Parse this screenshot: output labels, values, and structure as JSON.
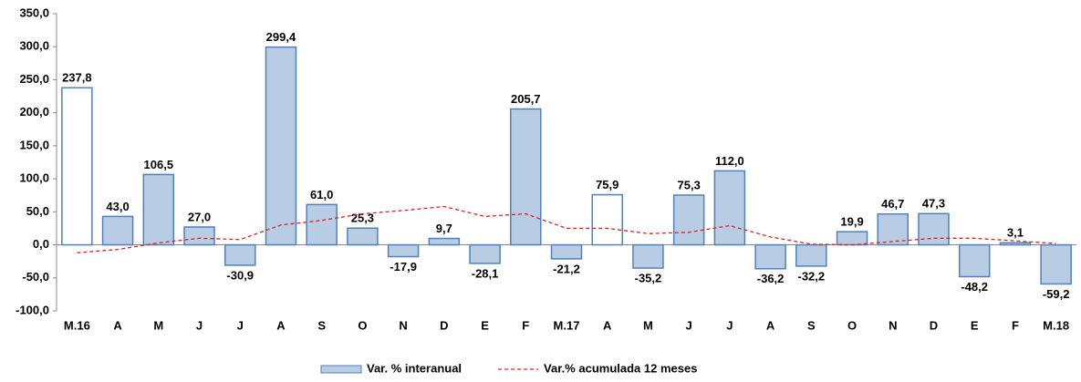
{
  "chart_data": {
    "type": "bar",
    "categories": [
      "M.16",
      "A",
      "M",
      "J",
      "J",
      "A",
      "S",
      "O",
      "N",
      "D",
      "E",
      "F",
      "M.17",
      "A",
      "M",
      "J",
      "J",
      "A",
      "S",
      "O",
      "N",
      "D",
      "E",
      "F",
      "M.18"
    ],
    "series": [
      {
        "name": "Var. % interanual",
        "type": "bar",
        "color": "#b8cce4",
        "border": "#4f81bd",
        "colors": [
          "#ffffff",
          "#b8cce4",
          "#b8cce4",
          "#b8cce4",
          "#b8cce4",
          "#b8cce4",
          "#b8cce4",
          "#b8cce4",
          "#b8cce4",
          "#b8cce4",
          "#b8cce4",
          "#b8cce4",
          "#b8cce4",
          "#ffffff",
          "#b8cce4",
          "#b8cce4",
          "#b8cce4",
          "#b8cce4",
          "#b8cce4",
          "#b8cce4",
          "#b8cce4",
          "#b8cce4",
          "#b8cce4",
          "#b8cce4",
          "#b8cce4"
        ],
        "values": [
          237.8,
          43.0,
          106.5,
          27.0,
          -30.9,
          299.4,
          61.0,
          25.3,
          -17.9,
          9.7,
          -28.1,
          205.7,
          -21.2,
          75.9,
          -35.2,
          75.3,
          112.0,
          -36.2,
          -32.2,
          19.9,
          46.7,
          47.3,
          -48.2,
          3.1,
          -59.2
        ],
        "value_labels": [
          "237,8",
          "43,0",
          "106,5",
          "27,0",
          "-30,9",
          "299,4",
          "61,0",
          "25,3",
          "-17,9",
          "9,7",
          "-28,1",
          "205,7",
          "-21,2",
          "75,9",
          "-35,2",
          "75,3",
          "112,0",
          "-36,2",
          "-32,2",
          "19,9",
          "46,7",
          "47,3",
          "-48,2",
          "3,1",
          "-59,2"
        ]
      },
      {
        "name": "Var.% acumulada 12 meses",
        "type": "line",
        "color": "#e02020",
        "dashed": true,
        "values": [
          -12,
          -7,
          3,
          10,
          8,
          30,
          37,
          47,
          52,
          58,
          43,
          47,
          25,
          25,
          17,
          19,
          29,
          12,
          1,
          0,
          5,
          10,
          10,
          6,
          2
        ]
      }
    ],
    "ylim": [
      -100,
      350
    ],
    "yticks": [
      {
        "value": -100,
        "label": "-100,0"
      },
      {
        "value": -50,
        "label": "-50,0"
      },
      {
        "value": 0,
        "label": "0,0"
      },
      {
        "value": 50,
        "label": "50,0"
      },
      {
        "value": 100,
        "label": "100,0"
      },
      {
        "value": 150,
        "label": "150,0"
      },
      {
        "value": 200,
        "label": "200,0"
      },
      {
        "value": 250,
        "label": "250,0"
      },
      {
        "value": 300,
        "label": "300,0"
      },
      {
        "value": 350,
        "label": "350,0"
      }
    ],
    "grid": false,
    "legend": "bottom"
  }
}
